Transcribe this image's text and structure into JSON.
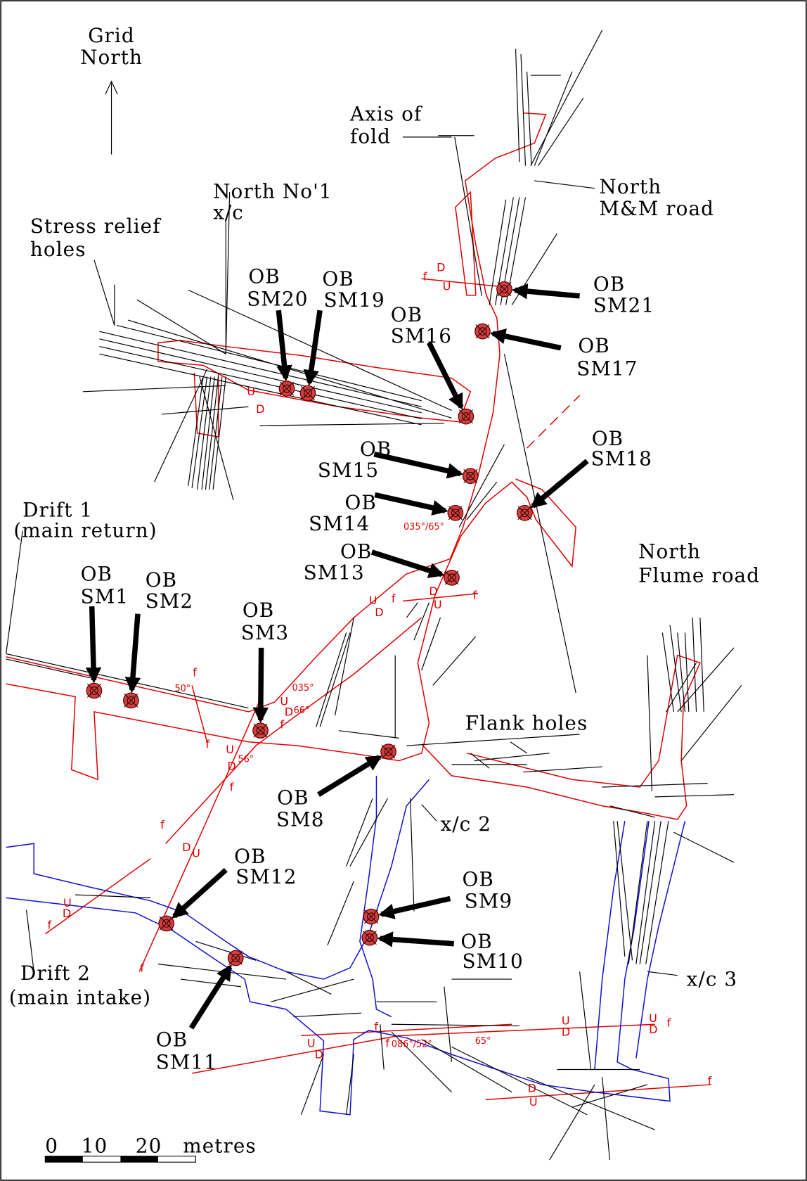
{
  "north_arrow": {
    "lines": [
      "Grid",
      "North"
    ]
  },
  "labels": [
    {
      "lines": [
        "Axis of",
        "fold"
      ]
    },
    {
      "lines": [
        "North No'1",
        "x/c"
      ]
    },
    {
      "lines": [
        "Stress relief",
        "holes"
      ]
    },
    {
      "lines": [
        "North",
        "M&M road"
      ]
    },
    {
      "lines": [
        "Drift 1",
        "(main return)"
      ]
    },
    {
      "lines": [
        "North",
        "Flume road"
      ]
    },
    {
      "lines": [
        "Flank holes"
      ]
    },
    {
      "lines": [
        "x/c 2"
      ]
    },
    {
      "lines": [
        "Drift 2",
        "(main intake)"
      ]
    },
    {
      "lines": [
        "x/c 3"
      ]
    }
  ],
  "boreholes": [
    {
      "lines": [
        "OB",
        "SM1"
      ]
    },
    {
      "lines": [
        "OB",
        "SM2"
      ]
    },
    {
      "lines": [
        "OB",
        "SM3"
      ]
    },
    {
      "lines": [
        "OB",
        "SM20"
      ]
    },
    {
      "lines": [
        "OB",
        "SM19"
      ]
    },
    {
      "lines": [
        "OB",
        "SM16"
      ]
    },
    {
      "lines": [
        "OB",
        "SM21"
      ]
    },
    {
      "lines": [
        "OB",
        "SM17"
      ]
    },
    {
      "lines": [
        "OB",
        "SM15"
      ]
    },
    {
      "lines": [
        "OB",
        "SM18"
      ]
    },
    {
      "lines": [
        "OB",
        "SM14"
      ]
    },
    {
      "lines": [
        "OB",
        "SM13"
      ]
    },
    {
      "lines": [
        "OB",
        "SM8"
      ]
    },
    {
      "lines": [
        "OB",
        "SM12"
      ]
    },
    {
      "lines": [
        "OB",
        "SM9"
      ]
    },
    {
      "lines": [
        "OB",
        "SM10"
      ]
    },
    {
      "lines": [
        "OB",
        "SM11"
      ]
    }
  ],
  "fault_annotations": [
    "50°",
    "035°",
    "66°",
    "56°",
    "035°/65°",
    "086°/52°",
    "65°",
    "f",
    "D",
    "U",
    "U",
    "D",
    "U",
    "D",
    "f",
    "D",
    "U",
    "f",
    "f",
    "f",
    "U",
    "D",
    "f",
    "U",
    "D",
    "f",
    "f",
    "D",
    "U",
    "U",
    "D",
    "f",
    "f",
    "U",
    "D",
    "f",
    "f",
    "U",
    "D",
    "U",
    "D",
    "f",
    "f",
    "D",
    "U"
  ],
  "scale_bar": {
    "ticks": [
      "0",
      "10",
      "20"
    ],
    "unit": "metres"
  }
}
